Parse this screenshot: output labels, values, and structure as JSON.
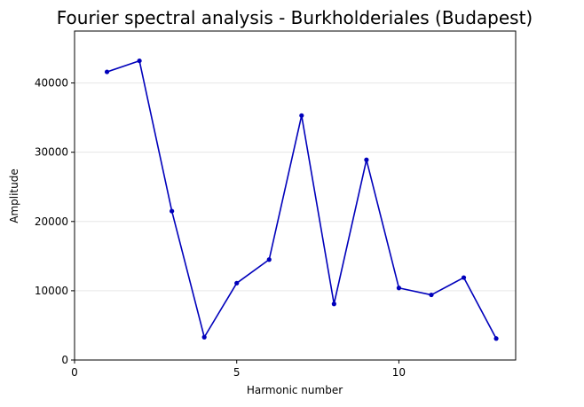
{
  "chart_data": {
    "type": "line",
    "title": "Fourier spectral analysis - Burkholderiales (Budapest)",
    "xlabel": "Harmonic number",
    "ylabel": "Amplitude",
    "xlim": [
      0,
      13.6
    ],
    "ylim": [
      0,
      47500
    ],
    "xticks": [
      0,
      5,
      10
    ],
    "yticks": [
      0,
      10000,
      20000,
      30000,
      40000
    ],
    "grid": "horizontal",
    "series": [
      {
        "color": "#0000bb",
        "x": [
          1,
          2,
          3,
          4,
          5,
          6,
          7,
          8,
          9,
          10,
          11,
          12,
          13
        ],
        "y": [
          41600,
          43200,
          21500,
          3300,
          11100,
          14500,
          35300,
          8100,
          28900,
          10400,
          9400,
          11900,
          3100
        ]
      }
    ]
  }
}
